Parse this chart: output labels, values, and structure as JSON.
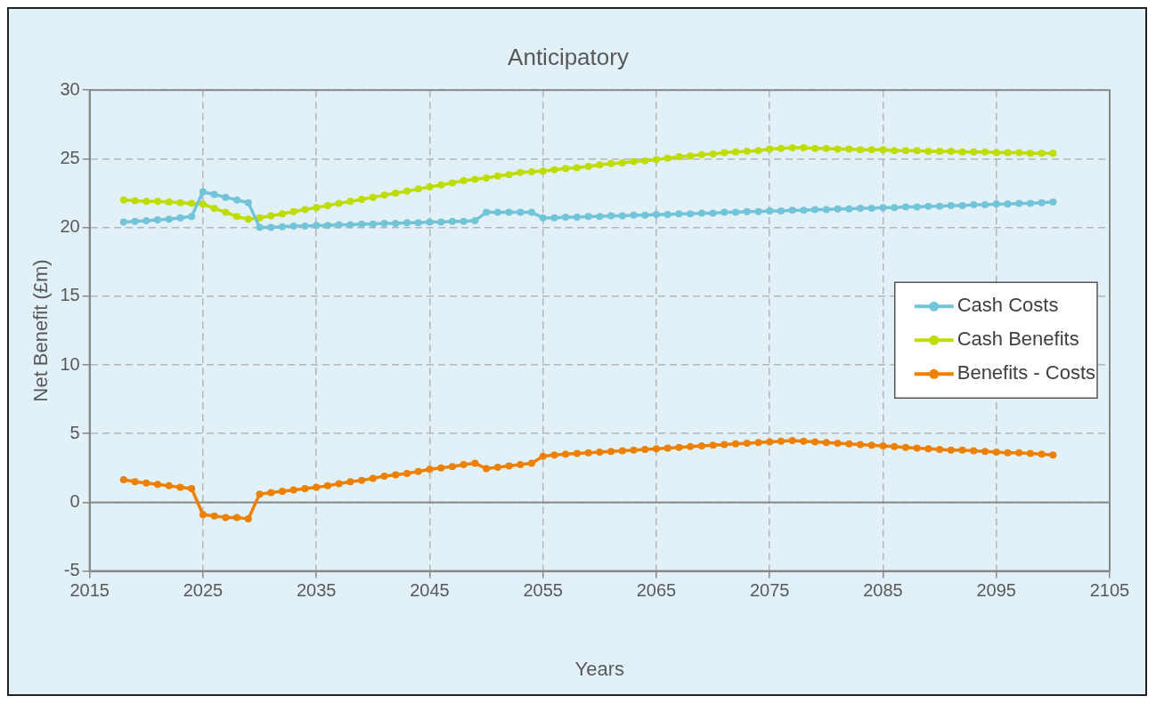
{
  "chart_data": {
    "type": "line",
    "title": "Anticipatory",
    "xlabel": "Years",
    "ylabel": "Net Benefit (£m)",
    "x": [
      2018,
      2019,
      2020,
      2021,
      2022,
      2023,
      2024,
      2025,
      2026,
      2027,
      2028,
      2029,
      2030,
      2031,
      2032,
      2033,
      2034,
      2035,
      2036,
      2037,
      2038,
      2039,
      2040,
      2041,
      2042,
      2043,
      2044,
      2045,
      2046,
      2047,
      2048,
      2049,
      2050,
      2051,
      2052,
      2053,
      2054,
      2055,
      2056,
      2057,
      2058,
      2059,
      2060,
      2061,
      2062,
      2063,
      2064,
      2065,
      2066,
      2067,
      2068,
      2069,
      2070,
      2071,
      2072,
      2073,
      2074,
      2075,
      2076,
      2077,
      2078,
      2079,
      2080,
      2081,
      2082,
      2083,
      2084,
      2085,
      2086,
      2087,
      2088,
      2089,
      2090,
      2091,
      2092,
      2093,
      2094,
      2095,
      2096,
      2097,
      2098,
      2099,
      2100
    ],
    "series": [
      {
        "name": "Cash Costs",
        "color": "#72c4d8",
        "values": [
          20.4,
          20.45,
          20.5,
          20.55,
          20.6,
          20.7,
          20.8,
          22.6,
          22.4,
          22.2,
          22.0,
          21.8,
          20.0,
          20.0,
          20.05,
          20.1,
          20.1,
          20.15,
          20.15,
          20.2,
          20.2,
          20.25,
          20.25,
          20.3,
          20.3,
          20.35,
          20.35,
          20.4,
          20.4,
          20.45,
          20.45,
          20.5,
          21.1,
          21.1,
          21.1,
          21.1,
          21.1,
          20.7,
          20.7,
          20.75,
          20.75,
          20.8,
          20.8,
          20.85,
          20.85,
          20.9,
          20.9,
          20.95,
          20.95,
          21.0,
          21.0,
          21.05,
          21.05,
          21.1,
          21.1,
          21.15,
          21.15,
          21.2,
          21.2,
          21.25,
          21.25,
          21.3,
          21.3,
          21.35,
          21.35,
          21.4,
          21.4,
          21.45,
          21.45,
          21.5,
          21.5,
          21.55,
          21.55,
          21.6,
          21.6,
          21.65,
          21.65,
          21.7,
          21.7,
          21.75,
          21.75,
          21.8,
          21.85
        ]
      },
      {
        "name": "Cash Benefits",
        "color": "#bedc00",
        "values": [
          22.0,
          21.95,
          21.9,
          21.9,
          21.85,
          21.8,
          21.75,
          21.7,
          21.4,
          21.1,
          20.8,
          20.6,
          20.7,
          20.85,
          21.0,
          21.15,
          21.3,
          21.45,
          21.6,
          21.75,
          21.9,
          22.05,
          22.2,
          22.35,
          22.5,
          22.65,
          22.8,
          22.95,
          23.1,
          23.25,
          23.4,
          23.5,
          23.6,
          23.75,
          23.85,
          24.0,
          24.05,
          24.1,
          24.2,
          24.3,
          24.35,
          24.45,
          24.55,
          24.65,
          24.7,
          24.8,
          24.85,
          24.95,
          25.05,
          25.15,
          25.2,
          25.3,
          25.35,
          25.45,
          25.5,
          25.55,
          25.6,
          25.7,
          25.75,
          25.8,
          25.8,
          25.75,
          25.75,
          25.7,
          25.7,
          25.65,
          25.65,
          25.65,
          25.6,
          25.6,
          25.6,
          25.55,
          25.55,
          25.55,
          25.5,
          25.5,
          25.5,
          25.45,
          25.45,
          25.45,
          25.4,
          25.4,
          25.4
        ]
      },
      {
        "name": "Benefits - Costs",
        "color": "#ee8000",
        "values": [
          1.65,
          1.5,
          1.4,
          1.3,
          1.2,
          1.1,
          1.0,
          -0.9,
          -1.0,
          -1.1,
          -1.1,
          -1.2,
          0.6,
          0.7,
          0.8,
          0.9,
          1.0,
          1.1,
          1.2,
          1.35,
          1.5,
          1.6,
          1.75,
          1.9,
          2.0,
          2.1,
          2.25,
          2.4,
          2.5,
          2.6,
          2.75,
          2.85,
          2.45,
          2.55,
          2.65,
          2.75,
          2.85,
          3.35,
          3.45,
          3.5,
          3.55,
          3.6,
          3.65,
          3.7,
          3.75,
          3.8,
          3.85,
          3.9,
          3.95,
          4.0,
          4.05,
          4.1,
          4.15,
          4.2,
          4.25,
          4.3,
          4.35,
          4.4,
          4.45,
          4.5,
          4.45,
          4.4,
          4.35,
          4.3,
          4.25,
          4.2,
          4.15,
          4.1,
          4.05,
          4.0,
          3.95,
          3.9,
          3.85,
          3.8,
          3.8,
          3.75,
          3.7,
          3.65,
          3.6,
          3.6,
          3.55,
          3.5,
          3.45
        ]
      }
    ],
    "xlim": [
      2015,
      2105
    ],
    "xticks": [
      2015,
      2025,
      2035,
      2045,
      2055,
      2065,
      2075,
      2085,
      2095,
      2105
    ],
    "ylim": [
      -5,
      30
    ],
    "yticks": [
      -5,
      0,
      5,
      10,
      15,
      20,
      25,
      30
    ],
    "grid": true,
    "legend": "right",
    "marker": "circle",
    "line_style": "solid"
  }
}
